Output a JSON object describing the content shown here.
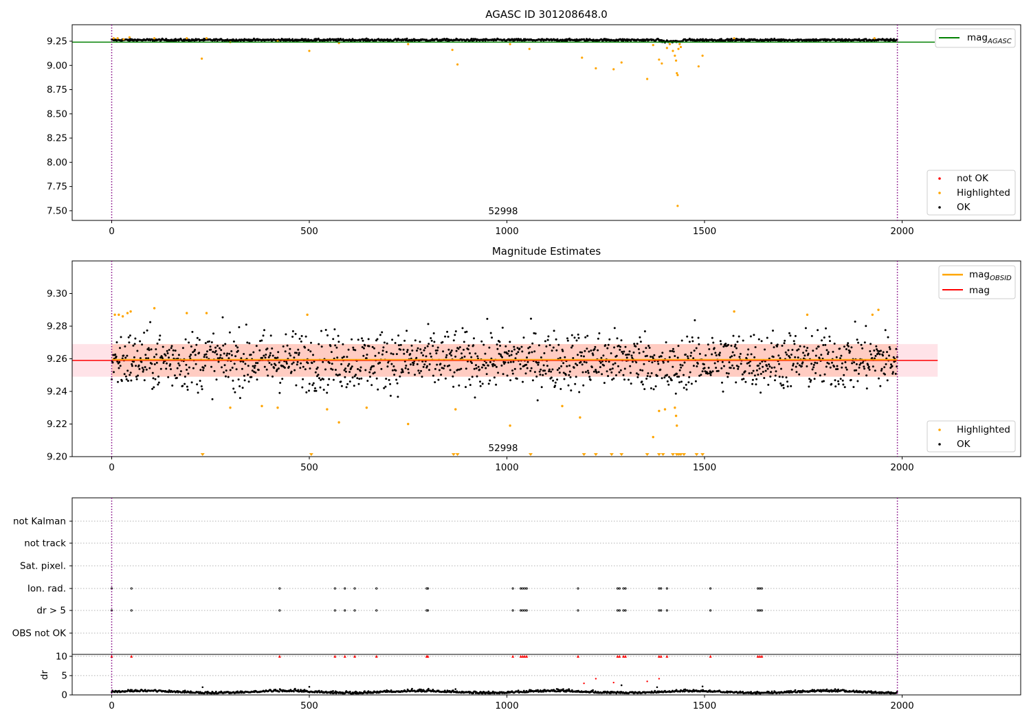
{
  "chart_data": [
    {
      "type": "scatter",
      "title": "AGASC ID 301208648.0",
      "xlim": [
        -100,
        2300
      ],
      "ylim": [
        7.4,
        9.42
      ],
      "xticks": [
        0,
        500,
        1000,
        1500,
        2000
      ],
      "yticks": [
        7.5,
        7.75,
        8.0,
        8.25,
        8.5,
        8.75,
        9.0,
        9.25
      ],
      "ytick_labels": [
        "7.50",
        "7.75",
        "8.00",
        "8.25",
        "8.50",
        "8.75",
        "9.00",
        "9.25"
      ],
      "vlines": [
        0,
        1988
      ],
      "annotation": {
        "text": "52998",
        "x": 990
      },
      "lines": [
        {
          "name": "mag_AGASC",
          "y": 9.24,
          "color": "#008000"
        }
      ],
      "ok_band": {
        "y_min": 9.225,
        "y_max": 9.285,
        "x_min": 0,
        "x_max": 1988
      },
      "series": [
        {
          "name": "not OK",
          "color": "#ff0000",
          "points": []
        },
        {
          "name": "Highlighted",
          "color": "#ffa500",
          "points": [
            [
              5,
              9.28
            ],
            [
              15,
              9.28
            ],
            [
              30,
              9.27
            ],
            [
              45,
              9.29
            ],
            [
              108,
              9.28
            ],
            [
              190,
              9.28
            ],
            [
              228,
              9.07
            ],
            [
              240,
              9.28
            ],
            [
              300,
              9.24
            ],
            [
              420,
              9.25
            ],
            [
              500,
              9.15
            ],
            [
              575,
              9.23
            ],
            [
              750,
              9.22
            ],
            [
              862,
              9.16
            ],
            [
              875,
              9.01
            ],
            [
              1008,
              9.22
            ],
            [
              1057,
              9.17
            ],
            [
              1190,
              9.08
            ],
            [
              1225,
              8.97
            ],
            [
              1270,
              8.96
            ],
            [
              1290,
              9.03
            ],
            [
              1355,
              8.86
            ],
            [
              1370,
              9.21
            ],
            [
              1385,
              9.06
            ],
            [
              1392,
              9.02
            ],
            [
              1405,
              9.18
            ],
            [
              1412,
              9.22
            ],
            [
              1420,
              9.15
            ],
            [
              1425,
              9.1
            ],
            [
              1428,
              9.05
            ],
            [
              1430,
              8.92
            ],
            [
              1432,
              8.9
            ],
            [
              1434,
              9.17
            ],
            [
              1437,
              9.22
            ],
            [
              1440,
              9.19
            ],
            [
              1432,
              7.55
            ],
            [
              1485,
              8.99
            ],
            [
              1495,
              9.1
            ],
            [
              1575,
              9.28
            ],
            [
              1930,
              9.28
            ]
          ]
        },
        {
          "name": "OK",
          "color": "#000000",
          "points": []
        }
      ],
      "legend_top": [
        {
          "label": "mag",
          "sub": "AGASC",
          "color": "#008000"
        }
      ],
      "legend_bottom": [
        {
          "label": "not OK",
          "color": "#ff0000"
        },
        {
          "label": "Highlighted",
          "color": "#ffa500"
        },
        {
          "label": "OK",
          "color": "#000000"
        }
      ]
    },
    {
      "type": "scatter",
      "title": "Magnitude Estimates",
      "xlim": [
        -100,
        2300
      ],
      "ylim": [
        9.2,
        9.32
      ],
      "xticks": [
        0,
        500,
        1000,
        1500,
        2000
      ],
      "yticks": [
        9.2,
        9.22,
        9.24,
        9.26,
        9.28,
        9.3
      ],
      "ytick_labels": [
        "9.20",
        "9.22",
        "9.24",
        "9.26",
        "9.28",
        "9.30"
      ],
      "vlines": [
        0,
        1988
      ],
      "annotation": {
        "text": "52998",
        "x": 990
      },
      "lines": [
        {
          "name": "mag_OBSID",
          "y": 9.2595,
          "color": "#ffa500",
          "x_range": [
            0,
            1988
          ]
        },
        {
          "name": "mag",
          "y": 9.259,
          "color": "#ff0000",
          "x_range": [
            -100,
            2090
          ]
        }
      ],
      "bands": [
        {
          "y_min": 9.249,
          "y_max": 9.269,
          "x_range": [
            -100,
            2090
          ],
          "color": "#ffc0cb",
          "opacity": 0.45
        },
        {
          "y_min": 9.249,
          "y_max": 9.269,
          "x_range": [
            0,
            1988
          ],
          "color": "#ffa07a",
          "opacity": 0.35
        }
      ],
      "ok_center": 9.259,
      "ok_spread": 0.009,
      "series": [
        {
          "name": "Highlighted",
          "color": "#ffa500",
          "points": [
            [
              8,
              9.287
            ],
            [
              18,
              9.287
            ],
            [
              28,
              9.286
            ],
            [
              40,
              9.288
            ],
            [
              48,
              9.289
            ],
            [
              108,
              9.291
            ],
            [
              190,
              9.288
            ],
            [
              240,
              9.288
            ],
            [
              300,
              9.23
            ],
            [
              380,
              9.231
            ],
            [
              420,
              9.23
            ],
            [
              495,
              9.287
            ],
            [
              545,
              9.229
            ],
            [
              575,
              9.221
            ],
            [
              645,
              9.23
            ],
            [
              750,
              9.22
            ],
            [
              870,
              9.229
            ],
            [
              1008,
              9.219
            ],
            [
              1140,
              9.231
            ],
            [
              1185,
              9.224
            ],
            [
              1370,
              9.212
            ],
            [
              1385,
              9.228
            ],
            [
              1400,
              9.229
            ],
            [
              1425,
              9.23
            ],
            [
              1428,
              9.225
            ],
            [
              1430,
              9.219
            ],
            [
              1575,
              9.289
            ],
            [
              1760,
              9.287
            ],
            [
              1925,
              9.287
            ],
            [
              1940,
              9.29
            ]
          ]
        }
      ],
      "markers_low": [
        230,
        505,
        865,
        875,
        1060,
        1195,
        1225,
        1265,
        1290,
        1355,
        1385,
        1395,
        1420,
        1430,
        1435,
        1440,
        1448,
        1480,
        1495
      ],
      "legend_top": [
        {
          "label": "mag",
          "sub": "OBSID",
          "color": "#ffa500"
        },
        {
          "label": "mag",
          "sub": "",
          "color": "#ff0000"
        }
      ],
      "legend_bottom": [
        {
          "label": "Highlighted",
          "color": "#ffa500"
        },
        {
          "label": "OK",
          "color": "#000000"
        }
      ]
    },
    {
      "type": "scatter",
      "title": "",
      "xlim": [
        -100,
        2300
      ],
      "categories": [
        "OBS not OK",
        "dr > 5",
        "Ion. rad.",
        "Sat. pixel.",
        "not track",
        "not Kalman"
      ],
      "flag_x": {
        "dr > 5": [
          0,
          50,
          425,
          565,
          590,
          615,
          670,
          797,
          800,
          1015,
          1035,
          1040,
          1045,
          1050,
          1180,
          1280,
          1285,
          1295,
          1300,
          1385,
          1390,
          1405,
          1515,
          1635,
          1640,
          1645
        ],
        "Ion. rad.": [
          0,
          50,
          425,
          565,
          590,
          615,
          670,
          797,
          800,
          1015,
          1035,
          1040,
          1045,
          1050,
          1180,
          1280,
          1285,
          1295,
          1300,
          1385,
          1390,
          1405,
          1515,
          1635,
          1640,
          1645
        ]
      },
      "vlines": [
        0,
        1988
      ]
    },
    {
      "type": "scatter",
      "title": "",
      "ylabel": "dr",
      "xlim": [
        -100,
        2300
      ],
      "ylim": [
        0,
        10.5
      ],
      "xticks": [
        0,
        500,
        1000,
        1500,
        2000
      ],
      "yticks": [
        0,
        5,
        10
      ],
      "ytick_labels": [
        "0",
        "5",
        "10"
      ],
      "vlines": [
        0,
        1988
      ],
      "red_at_10": [
        0,
        50,
        425,
        565,
        590,
        615,
        670,
        797,
        800,
        1015,
        1035,
        1040,
        1045,
        1050,
        1180,
        1280,
        1285,
        1295,
        1300,
        1385,
        1390,
        1405,
        1515,
        1635,
        1640,
        1645
      ],
      "red_scatter": [
        [
          1195,
          3.0
        ],
        [
          1225,
          4.2
        ],
        [
          1270,
          3.2
        ],
        [
          1355,
          3.5
        ],
        [
          1385,
          4.2
        ]
      ],
      "black_outliers": [
        [
          230,
          2.0
        ],
        [
          500,
          2.1
        ],
        [
          870,
          1.5
        ],
        [
          1290,
          2.5
        ],
        [
          1380,
          2.0
        ],
        [
          1495,
          2.2
        ]
      ]
    }
  ]
}
